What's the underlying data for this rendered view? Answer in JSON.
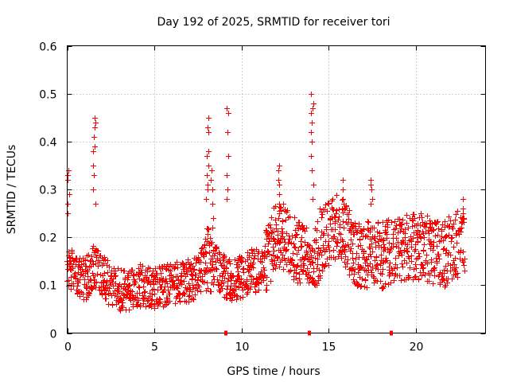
{
  "chart_data": {
    "type": "scatter",
    "title": "Day 192 of 2025, SRMTID for receiver tori",
    "xlabel": "GPS time / hours",
    "ylabel": "SRMTID / TECUs",
    "xlim": [
      0,
      24
    ],
    "ylim": [
      0,
      0.6
    ],
    "x_ticks": [
      0,
      5,
      10,
      15,
      20
    ],
    "x_tick_labels": [
      "0",
      "5",
      "10",
      "15",
      "20"
    ],
    "y_ticks": [
      0,
      0.1,
      0.2,
      0.3,
      0.4,
      0.5,
      0.6
    ],
    "y_tick_labels": [
      "0",
      "0.1",
      "0.2",
      "0.3",
      "0.4",
      "0.5",
      "0.6"
    ],
    "grid": true,
    "marker": "+",
    "color": "#ff0000",
    "data_gaps_x": [
      9.1,
      13.9,
      18.6
    ],
    "trend": [
      [
        0.0,
        0.14
      ],
      [
        0.5,
        0.12
      ],
      [
        1.0,
        0.11
      ],
      [
        1.5,
        0.14
      ],
      [
        2.0,
        0.12
      ],
      [
        2.5,
        0.1
      ],
      [
        3.0,
        0.09
      ],
      [
        3.5,
        0.09
      ],
      [
        4.0,
        0.1
      ],
      [
        4.5,
        0.1
      ],
      [
        5.0,
        0.09
      ],
      [
        5.5,
        0.1
      ],
      [
        6.0,
        0.1
      ],
      [
        6.5,
        0.11
      ],
      [
        7.0,
        0.11
      ],
      [
        7.5,
        0.12
      ],
      [
        8.0,
        0.16
      ],
      [
        8.5,
        0.14
      ],
      [
        9.0,
        0.12
      ],
      [
        9.5,
        0.11
      ],
      [
        10.0,
        0.12
      ],
      [
        10.5,
        0.13
      ],
      [
        11.0,
        0.13
      ],
      [
        11.5,
        0.16
      ],
      [
        12.0,
        0.21
      ],
      [
        12.5,
        0.2
      ],
      [
        13.0,
        0.18
      ],
      [
        13.5,
        0.16
      ],
      [
        14.0,
        0.14
      ],
      [
        14.5,
        0.19
      ],
      [
        15.0,
        0.21
      ],
      [
        15.5,
        0.22
      ],
      [
        16.0,
        0.2
      ],
      [
        16.5,
        0.17
      ],
      [
        17.0,
        0.16
      ],
      [
        17.5,
        0.17
      ],
      [
        18.0,
        0.16
      ],
      [
        18.5,
        0.17
      ],
      [
        19.0,
        0.18
      ],
      [
        19.5,
        0.18
      ],
      [
        20.0,
        0.18
      ],
      [
        20.5,
        0.18
      ],
      [
        21.0,
        0.17
      ],
      [
        21.5,
        0.16
      ],
      [
        22.0,
        0.18
      ],
      [
        22.8,
        0.19
      ]
    ],
    "spikes": [
      {
        "x": 0.05,
        "values": [
          0.34,
          0.33,
          0.32,
          0.29,
          0.27,
          0.25
        ]
      },
      {
        "x": 1.55,
        "values": [
          0.45,
          0.44,
          0.43,
          0.41,
          0.39,
          0.38,
          0.35,
          0.33,
          0.3,
          0.27
        ]
      },
      {
        "x": 8.05,
        "values": [
          0.45,
          0.43,
          0.42,
          0.38,
          0.37,
          0.35,
          0.33,
          0.31,
          0.3,
          0.28
        ]
      },
      {
        "x": 8.3,
        "values": [
          0.34,
          0.32,
          0.3,
          0.27,
          0.24,
          0.22
        ]
      },
      {
        "x": 9.2,
        "values": [
          0.47,
          0.46,
          0.42,
          0.37,
          0.33,
          0.3,
          0.28
        ]
      },
      {
        "x": 12.1,
        "values": [
          0.35,
          0.34,
          0.32,
          0.31,
          0.29,
          0.27,
          0.25
        ]
      },
      {
        "x": 14.05,
        "values": [
          0.5,
          0.48,
          0.47,
          0.46,
          0.44,
          0.42,
          0.4,
          0.37,
          0.34,
          0.31,
          0.28
        ]
      },
      {
        "x": 15.85,
        "values": [
          0.32,
          0.3,
          0.28,
          0.27,
          0.26
        ]
      },
      {
        "x": 17.45,
        "values": [
          0.32,
          0.31,
          0.3,
          0.28,
          0.27
        ]
      },
      {
        "x": 22.65,
        "values": [
          0.28,
          0.26,
          0.25,
          0.24
        ]
      }
    ]
  }
}
